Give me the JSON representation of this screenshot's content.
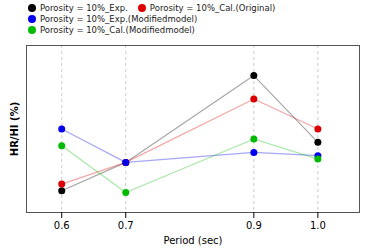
{
  "chart_data": {
    "type": "line",
    "xlabel": "Period (sec)",
    "ylabel": "HR/HI (%)",
    "x": [
      0.6,
      0.7,
      0.9,
      1.0
    ],
    "series": [
      {
        "name": "Porosity = 10%_Exp.",
        "color": "#000000",
        "values": [
          0.13,
          0.3,
          0.82,
          0.42
        ]
      },
      {
        "name": "Porosity = 10%_Cal.(Original)",
        "color": "#dd0000",
        "values": [
          0.17,
          0.3,
          0.68,
          0.5
        ]
      },
      {
        "name": "Porosity = 10%_Exp.(Modifiedmodel)",
        "color": "#0000ee",
        "values": [
          0.5,
          0.3,
          0.36,
          0.34
        ]
      },
      {
        "name": "Porosity = 10%_Cal.(Modifiedmodel)",
        "color": "#00bb00",
        "values": [
          0.4,
          0.12,
          0.44,
          0.32
        ]
      }
    ],
    "xlim": [
      0.545,
      1.065
    ],
    "ylim": [
      0.0,
      1.0
    ],
    "xticks": [
      0.6,
      0.7,
      0.9,
      {
        "value": 1.0,
        "label": "1.0"
      }
    ],
    "yticks": [],
    "tick_labels": "x",
    "grid": true,
    "marker": "circle",
    "legend": "top"
  }
}
